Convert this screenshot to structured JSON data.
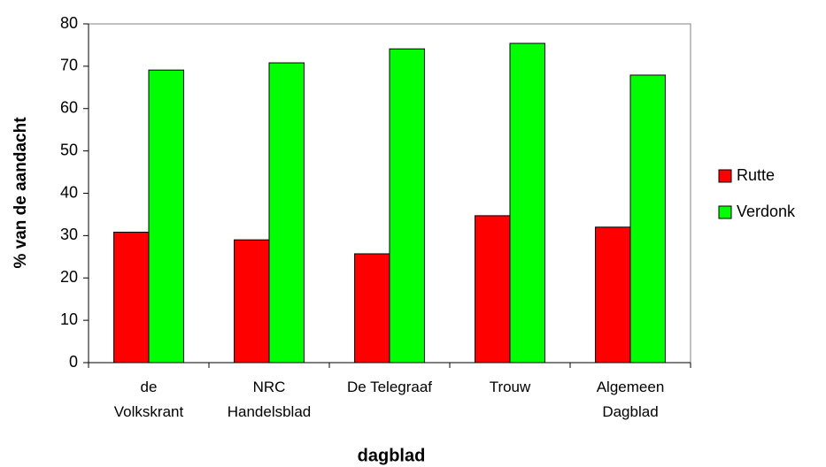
{
  "chart_data": {
    "type": "bar",
    "categories": [
      "de\nVolkskrant",
      "NRC\nHandelsblad",
      "De Telegraaf",
      "Trouw",
      "Algemeen\nDagblad"
    ],
    "series": [
      {
        "name": "Rutte",
        "color": "#ff0000",
        "values": [
          30.8,
          29.0,
          25.7,
          34.7,
          32.0
        ]
      },
      {
        "name": "Verdonk",
        "color": "#00ff00",
        "values": [
          69.1,
          70.8,
          74.1,
          75.4,
          67.9
        ]
      }
    ],
    "xlabel": "dagblad",
    "ylabel": "% van de aandacht",
    "ylim": [
      0,
      80
    ],
    "yticks": [
      0,
      10,
      20,
      30,
      40,
      50,
      60,
      70,
      80
    ],
    "grid": false,
    "legend": "right"
  }
}
